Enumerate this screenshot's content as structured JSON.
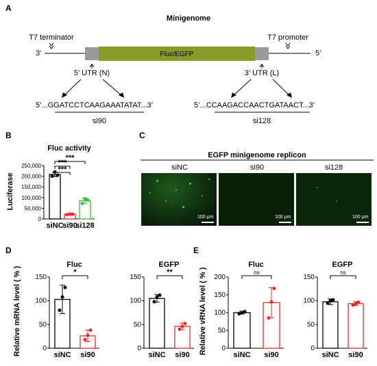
{
  "panelA": {
    "letter": "A",
    "title": "Minigenome",
    "t7_terminator": "T7 terminator",
    "t7_promoter": "T7 promoter",
    "end3": "3’",
    "end5": "5’",
    "gene": "Fluc/EGFP",
    "utr5": "5’ UTR (N)",
    "utr3": "3’ UTR (L)",
    "seq1": "5’...GGATCCTCAAGAAATATAT...3’",
    "seq2": "5’...CCAAGACCAACTGATAACT...3’",
    "sirna1": "si90",
    "sirna2": "si128"
  },
  "panelB": {
    "letter": "B"
  },
  "panelC": {
    "letter": "C",
    "title": "EGFP minigenome replicon",
    "images": [
      {
        "label": "siNC",
        "scale": "100 μm"
      },
      {
        "label": "si90",
        "scale": "100 μm"
      },
      {
        "label": "si128",
        "scale": "100 μm"
      }
    ]
  },
  "panelD": {
    "letter": "D"
  },
  "panelE": {
    "letter": "E"
  },
  "colors": {
    "black": "#000000",
    "red": "#e8292b",
    "green": "#3bbf3b",
    "gene": "#8a9a2a",
    "utr": "#999999"
  },
  "chart_data": [
    {
      "id": "B",
      "type": "bar",
      "title": "Fluc activity",
      "ylabel": "Luciferase",
      "categories": [
        "siNC",
        "si90",
        "si128"
      ],
      "values": [
        208000,
        22000,
        85000
      ],
      "points": [
        [
          200000,
          220000,
          205000
        ],
        [
          20000,
          23000,
          22000
        ],
        [
          72000,
          95000,
          88000
        ]
      ],
      "errors": [
        10000,
        1500,
        12000
      ],
      "colors": [
        "#000000",
        "#e8292b",
        "#3bbf3b"
      ],
      "ylim": [
        0,
        250000
      ],
      "yticks": [
        "0",
        "50,000",
        "100,000",
        "150,000",
        "200,000",
        "250,000"
      ],
      "significance": [
        "***",
        "***",
        "***"
      ]
    },
    {
      "id": "D1",
      "type": "bar",
      "title": "Fluc",
      "ylabel": "Relative mRNA level ( % )",
      "categories": [
        "siNC",
        "si90"
      ],
      "values": [
        103,
        26
      ],
      "points": [
        [
          80,
          108,
          128
        ],
        [
          18,
          27,
          38
        ]
      ],
      "errors": [
        30,
        12
      ],
      "colors": [
        "#000000",
        "#e8292b"
      ],
      "ylim": [
        0,
        150
      ],
      "yticks": [
        "0",
        "50",
        "100",
        "150"
      ],
      "significance": [
        "*"
      ]
    },
    {
      "id": "D2",
      "type": "bar",
      "title": "EGFP",
      "categories": [
        "siNC",
        "si90"
      ],
      "values": [
        105,
        46
      ],
      "points": [
        [
          98,
          108,
          112
        ],
        [
          40,
          46,
          52
        ]
      ],
      "errors": [
        8,
        7
      ],
      "colors": [
        "#000000",
        "#e8292b"
      ],
      "ylim": [
        0,
        150
      ],
      "yticks": [
        "0",
        "50",
        "100",
        "150"
      ],
      "significance": [
        "**"
      ]
    },
    {
      "id": "E1",
      "type": "bar",
      "title": "Fluc",
      "ylabel": "Relative vRNA level ( % )",
      "categories": [
        "siNC",
        "si90"
      ],
      "values": [
        100,
        128
      ],
      "points": [
        [
          97,
          100,
          103
        ],
        [
          85,
          130,
          168
        ]
      ],
      "errors": [
        4,
        42
      ],
      "colors": [
        "#000000",
        "#e8292b"
      ],
      "ylim": [
        0,
        200
      ],
      "yticks": [
        "0",
        "50",
        "100",
        "150",
        "200"
      ],
      "significance": [
        "ns"
      ]
    },
    {
      "id": "E2",
      "type": "bar",
      "title": "EGFP",
      "categories": [
        "siNC",
        "si90"
      ],
      "values": [
        98,
        94
      ],
      "points": [
        [
          95,
          100,
          102
        ],
        [
          91,
          94,
          97
        ]
      ],
      "errors": [
        6,
        4
      ],
      "colors": [
        "#000000",
        "#e8292b"
      ],
      "ylim": [
        0,
        150
      ],
      "yticks": [
        "0",
        "50",
        "100",
        "150"
      ],
      "significance": [
        "ns"
      ]
    }
  ]
}
